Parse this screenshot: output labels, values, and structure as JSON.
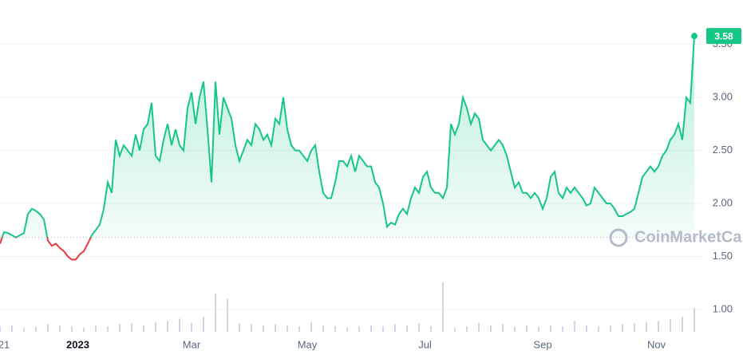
{
  "chart_data": {
    "type": "line",
    "watermark": "CoinMarketCap",
    "x": [
      0,
      2,
      4,
      6,
      8,
      10,
      12,
      14,
      16,
      18,
      20,
      22,
      24,
      26,
      28,
      30,
      32,
      34,
      36,
      38,
      40,
      42,
      44,
      46,
      48,
      50,
      52,
      54,
      56,
      58,
      60,
      62,
      64,
      66,
      68,
      70,
      72,
      74,
      76,
      78,
      80,
      82,
      84,
      86,
      88,
      90,
      92,
      94,
      96,
      98,
      100,
      102,
      104,
      106,
      108,
      110,
      112,
      114,
      116,
      118,
      120,
      122,
      124,
      126,
      128,
      130,
      132,
      134,
      136,
      138,
      140,
      142,
      144,
      146,
      148,
      150,
      152,
      154,
      156,
      158,
      160,
      162,
      164,
      166,
      168,
      170,
      172,
      174,
      176,
      178,
      180,
      182,
      184,
      186,
      188,
      190,
      192,
      194,
      196,
      198,
      200,
      202,
      204,
      206,
      208,
      210,
      212,
      214,
      216,
      218,
      220,
      222,
      224,
      226,
      228,
      230,
      232,
      234,
      236,
      238,
      240,
      242,
      244,
      246,
      248,
      250,
      252,
      254,
      256,
      258,
      260,
      262,
      264,
      266,
      268,
      270,
      272,
      274,
      276,
      278,
      280,
      282,
      284,
      286,
      288,
      290,
      292,
      294,
      296,
      298,
      300,
      302,
      304,
      306,
      308,
      310,
      312,
      314,
      316,
      318,
      320,
      322,
      324,
      326,
      328,
      330,
      332,
      334,
      336,
      338,
      340,
      342,
      344,
      346,
      348
    ],
    "series": [
      {
        "color": "#16c784",
        "below_color": "#ea3943",
        "values": [
          1.62,
          1.73,
          1.72,
          1.7,
          1.68,
          1.7,
          1.72,
          1.9,
          1.95,
          1.93,
          1.9,
          1.85,
          1.65,
          1.6,
          1.62,
          1.58,
          1.55,
          1.5,
          1.47,
          1.47,
          1.52,
          1.55,
          1.62,
          1.7,
          1.75,
          1.8,
          1.95,
          2.2,
          2.1,
          2.6,
          2.45,
          2.55,
          2.5,
          2.45,
          2.65,
          2.5,
          2.7,
          2.75,
          2.95,
          2.45,
          2.4,
          2.6,
          2.75,
          2.55,
          2.7,
          2.55,
          2.5,
          2.9,
          3.05,
          2.75,
          3.0,
          3.15,
          2.7,
          2.2,
          3.15,
          2.65,
          3.0,
          2.9,
          2.8,
          2.55,
          2.4,
          2.5,
          2.6,
          2.55,
          2.75,
          2.7,
          2.6,
          2.65,
          2.55,
          2.8,
          2.75,
          3.0,
          2.7,
          2.55,
          2.5,
          2.5,
          2.45,
          2.4,
          2.5,
          2.55,
          2.3,
          2.1,
          2.05,
          2.05,
          2.2,
          2.4,
          2.4,
          2.35,
          2.45,
          2.3,
          2.45,
          2.4,
          2.35,
          2.35,
          2.2,
          2.15,
          2.0,
          1.78,
          1.82,
          1.8,
          1.9,
          1.95,
          1.9,
          2.05,
          2.15,
          2.1,
          2.25,
          2.3,
          2.15,
          2.1,
          2.1,
          2.05,
          2.15,
          2.75,
          2.65,
          2.75,
          3.0,
          2.9,
          2.75,
          2.85,
          2.8,
          2.6,
          2.55,
          2.5,
          2.55,
          2.6,
          2.55,
          2.45,
          2.3,
          2.15,
          2.2,
          2.1,
          2.1,
          2.05,
          2.1,
          2.05,
          1.95,
          2.05,
          2.25,
          2.3,
          2.1,
          2.05,
          2.15,
          2.1,
          2.15,
          2.1,
          2.05,
          1.98,
          2.0,
          2.15,
          2.1,
          2.05,
          2.0,
          2.0,
          1.95,
          1.88,
          1.88,
          1.9,
          1.92,
          1.95,
          2.1,
          2.25,
          2.3,
          2.35,
          2.3,
          2.35,
          2.45,
          2.5,
          2.6,
          2.65,
          2.75,
          2.6,
          3.0,
          2.95,
          3.58
        ]
      }
    ],
    "baseline": 1.68,
    "volume": {
      "color": "#cfd6e4",
      "x": [
        0,
        6,
        12,
        18,
        24,
        30,
        36,
        42,
        48,
        54,
        60,
        66,
        72,
        78,
        84,
        90,
        96,
        102,
        108,
        114,
        120,
        126,
        132,
        138,
        144,
        150,
        156,
        162,
        168,
        174,
        180,
        186,
        192,
        198,
        204,
        210,
        216,
        222,
        228,
        234,
        240,
        246,
        252,
        258,
        264,
        270,
        276,
        282,
        288,
        294,
        300,
        306,
        312,
        318,
        324,
        330,
        336,
        342,
        348
      ],
      "values": [
        5,
        6,
        4,
        5,
        7,
        6,
        5,
        4,
        6,
        5,
        7,
        8,
        6,
        9,
        10,
        12,
        8,
        14,
        35,
        30,
        8,
        7,
        6,
        7,
        6,
        5,
        9,
        6,
        5,
        4,
        5,
        6,
        5,
        7,
        6,
        8,
        5,
        45,
        4,
        5,
        8,
        6,
        7,
        5,
        6,
        5,
        6,
        5,
        10,
        6,
        5,
        6,
        7,
        8,
        9,
        10,
        12,
        14,
        22
      ]
    },
    "xlim": [
      0,
      352
    ],
    "xticks": [
      {
        "value": 2,
        "label": "21"
      },
      {
        "value": 39,
        "label": "2023"
      },
      {
        "value": 96,
        "label": "Mar"
      },
      {
        "value": 154,
        "label": "May"
      },
      {
        "value": 213,
        "label": "Jul"
      },
      {
        "value": 272,
        "label": "Sep"
      },
      {
        "value": 329,
        "label": "Nov"
      }
    ],
    "ylim": [
      0.57,
      3.92
    ],
    "yticks": [
      {
        "value": 1,
        "label": "1.00"
      },
      {
        "value": 1.5,
        "label": "1.50"
      },
      {
        "value": 2,
        "label": "2.00"
      },
      {
        "value": 2.5,
        "label": "2.50"
      },
      {
        "value": 3,
        "label": "3.00"
      },
      {
        "value": 3.5,
        "label": "3.50"
      }
    ],
    "grid": true
  }
}
